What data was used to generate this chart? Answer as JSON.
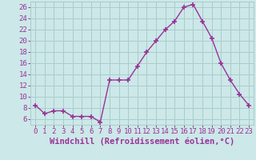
{
  "x": [
    0,
    1,
    2,
    3,
    4,
    5,
    6,
    7,
    8,
    9,
    10,
    11,
    12,
    13,
    14,
    15,
    16,
    17,
    18,
    19,
    20,
    21,
    22,
    23
  ],
  "y": [
    8.5,
    7,
    7.5,
    7.5,
    6.5,
    6.5,
    6.5,
    5.5,
    13,
    13,
    13,
    15.5,
    18,
    20,
    22,
    23.5,
    26,
    26.5,
    23.5,
    20.5,
    16,
    13,
    10.5,
    8.5
  ],
  "line_color": "#993399",
  "marker_color": "#993399",
  "bg_color": "#cce8e8",
  "grid_color": "#aacccc",
  "xlabel": "Windchill (Refroidissement éolien,°C)",
  "xlim": [
    -0.5,
    23.5
  ],
  "ylim": [
    5.0,
    27.0
  ],
  "yticks": [
    6,
    8,
    10,
    12,
    14,
    16,
    18,
    20,
    22,
    24,
    26
  ],
  "xticks": [
    0,
    1,
    2,
    3,
    4,
    5,
    6,
    7,
    8,
    9,
    10,
    11,
    12,
    13,
    14,
    15,
    16,
    17,
    18,
    19,
    20,
    21,
    22,
    23
  ],
  "font_color": "#993399",
  "tick_fontsize": 6.5,
  "xlabel_fontsize": 7.5
}
